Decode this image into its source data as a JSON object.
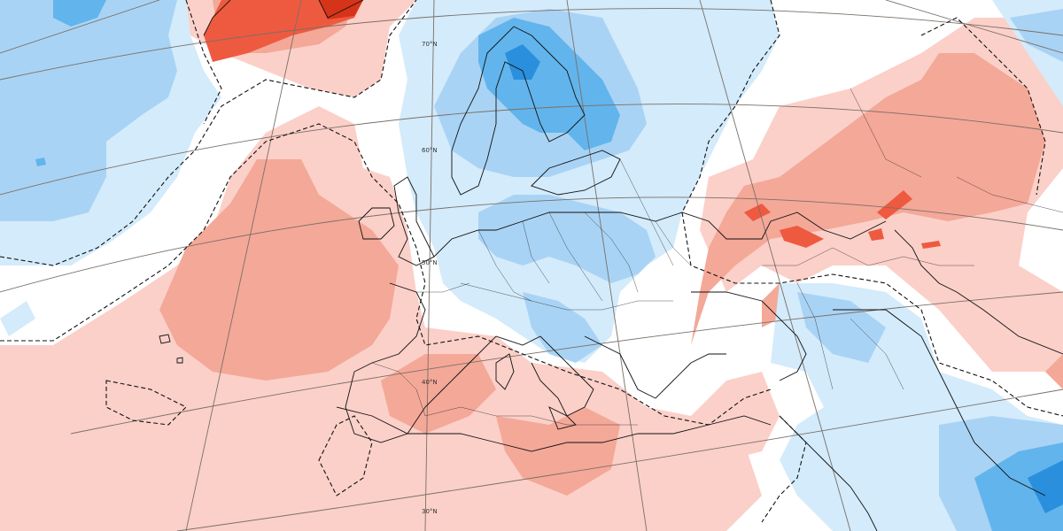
{
  "map": {
    "projection": "polar-stereographic",
    "colors": {
      "background": "#ffffff",
      "light_red": "#fbd0c9",
      "mid_red": "#f4a898",
      "strong_red": "#ee5a40",
      "deep_red": "#d63418",
      "light_blue": "#d3ebfb",
      "mid_blue": "#a9d3f4",
      "strong_blue": "#62b4ec",
      "deep_blue": "#2a8fdc"
    },
    "latitude_labels": [
      "70°N",
      "60°N",
      "50°N",
      "40°N",
      "30°N"
    ]
  }
}
